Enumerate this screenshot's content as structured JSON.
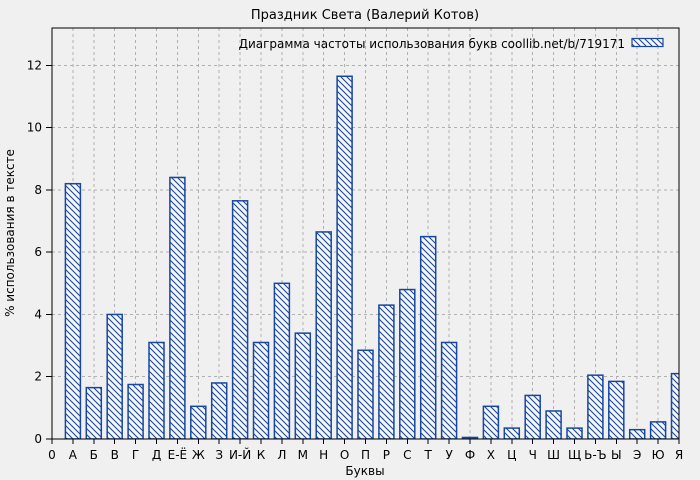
{
  "title": "Праздник Света (Валерий Котов)",
  "legend": {
    "label": "Диаграмма частоты использования букв coollib.net/b/719171"
  },
  "colors": {
    "bar_blue": "#17479e",
    "background": "#f0f0f0",
    "grid": "#b0b0b0",
    "axis": "#000000"
  },
  "chart_data": {
    "type": "bar",
    "title": "Праздник Света (Валерий Котов)",
    "xlabel": "Буквы",
    "ylabel": "% использования в тексте",
    "x_origin_label": "0",
    "categories": [
      "А",
      "Б",
      "В",
      "Г",
      "Д",
      "Е-Ё",
      "Ж",
      "З",
      "И-Й",
      "К",
      "Л",
      "М",
      "Н",
      "О",
      "П",
      "Р",
      "С",
      "Т",
      "У",
      "Ф",
      "Х",
      "Ц",
      "Ч",
      "Ш",
      "Щ",
      "Ь-Ъ",
      "Ы",
      "Э",
      "Ю",
      "Я"
    ],
    "values": [
      8.2,
      1.65,
      4.0,
      1.75,
      3.1,
      8.4,
      1.05,
      1.8,
      7.65,
      3.1,
      5.0,
      3.4,
      6.65,
      11.65,
      2.85,
      4.3,
      4.8,
      6.5,
      3.1,
      0.05,
      1.05,
      0.35,
      1.4,
      0.9,
      0.35,
      2.05,
      1.85,
      0.3,
      0.55,
      2.1
    ],
    "legend_label": "Диаграмма частоты использования букв coollib.net/b/719171",
    "ylim": [
      0,
      13.2
    ],
    "yticks": [
      0,
      2,
      4,
      6,
      8,
      10,
      12
    ],
    "grid": true,
    "grid_style": "dashed",
    "legend_position": "top-right-inside",
    "bar_style": "blue-diagonal-hatch",
    "last_bar_clipped_at_right_border": true
  }
}
